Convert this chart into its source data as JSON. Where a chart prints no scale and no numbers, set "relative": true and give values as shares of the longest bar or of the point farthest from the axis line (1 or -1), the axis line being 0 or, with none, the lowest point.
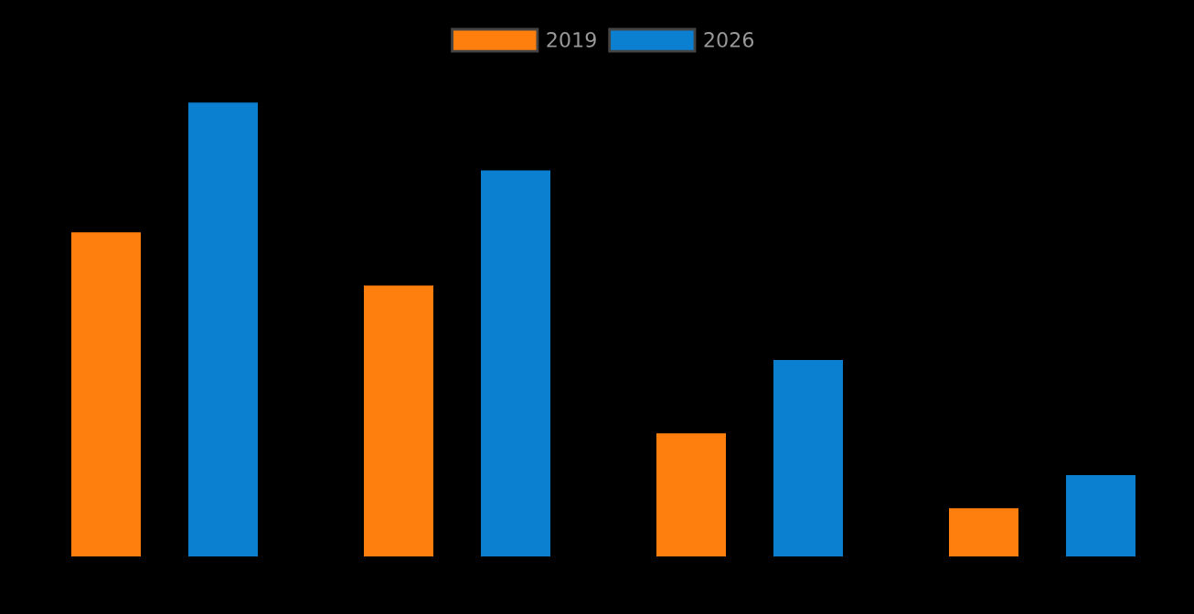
{
  "chart_data": {
    "type": "bar",
    "relative": true,
    "categories": [
      null,
      null,
      null,
      null
    ],
    "series": [
      {
        "name": "2019",
        "color": "#ff7f0e",
        "values": [
          0.715,
          0.598,
          0.273,
          0.108
        ]
      },
      {
        "name": "2026",
        "color": "#0c80d0",
        "values": [
          1,
          0.851,
          0.434,
          0.181
        ]
      }
    ],
    "legend": "top",
    "grid": false
  }
}
